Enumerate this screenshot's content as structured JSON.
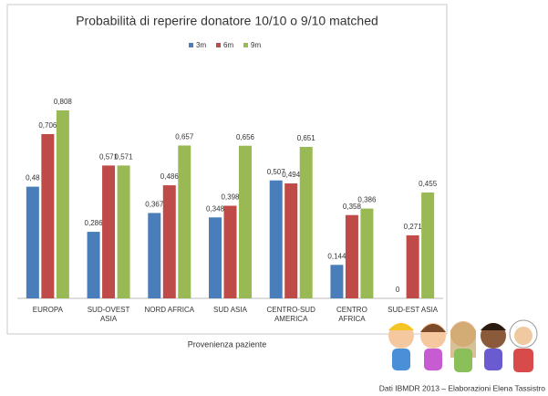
{
  "chart_data": {
    "type": "bar",
    "title": "Probabilità di reperire donatore 10/10 o 9/10  matched",
    "categories": [
      "EUROPA",
      "SUD-OVEST ASIA",
      "NORD AFRICA",
      "SUD ASIA",
      "CENTRO-SUD AMERICA",
      "CENTRO AFRICA",
      "SUD-EST ASIA"
    ],
    "series": [
      {
        "name": "3m",
        "color": "#4a7ebb",
        "values": [
          0.48,
          0.286,
          0.367,
          0.348,
          0.507,
          0.144,
          0
        ],
        "value_labels": [
          "0,48",
          "0,286",
          "0,367",
          "0,348",
          "0,507",
          "0,144",
          "0"
        ]
      },
      {
        "name": "6m",
        "color": "#be4b48",
        "values": [
          0.706,
          0.571,
          0.486,
          0.398,
          0.494,
          0.358,
          0.271
        ],
        "value_labels": [
          "0,706",
          "0,571",
          "0,486",
          "0,398",
          "0,494",
          "0,358",
          "0,271"
        ]
      },
      {
        "name": "9m",
        "color": "#98b954",
        "values": [
          0.808,
          0.571,
          0.657,
          0.656,
          0.651,
          0.386,
          0.455
        ],
        "value_labels": [
          "0,808",
          "0,571",
          "0,657",
          "0,656",
          "0,651",
          "0,386",
          "0,455"
        ]
      }
    ],
    "ylim": [
      0,
      0.9
    ],
    "x_label": "Provenienza  paziente",
    "source": "Dati IBMDR 2013 –  Elaborazioni Elena Tassistro"
  }
}
